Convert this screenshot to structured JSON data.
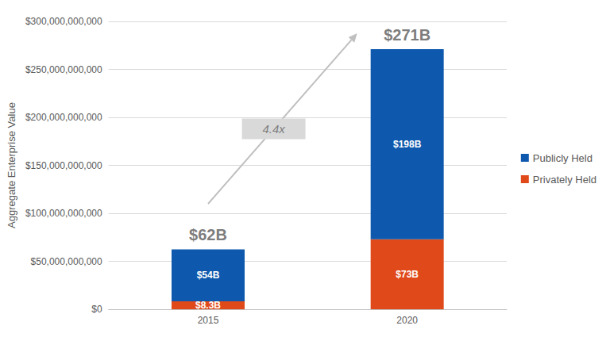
{
  "chart_data": {
    "type": "bar",
    "stacked": true,
    "data_labels": true,
    "legend": "right",
    "grid": true,
    "y_label": "Aggregate Enterprise Value",
    "categories": [
      "2015",
      "2020"
    ],
    "series": [
      {
        "name": "Publicly Held",
        "color": "#0E59AD",
        "values": [
          54000000000,
          198000000000
        ],
        "value_labels": [
          "$54B",
          "$198B"
        ]
      },
      {
        "name": "Privately Held",
        "color": "#E04A1B",
        "values": [
          8300000000,
          73000000000
        ],
        "value_labels": [
          "$8.3B",
          "$73B"
        ]
      }
    ],
    "totals": [
      62000000000,
      271000000000
    ],
    "total_labels": [
      "$62B",
      "$271B"
    ],
    "annotations": [
      "4.4x"
    ],
    "ylim": [
      0,
      300000000000
    ],
    "yticks": [
      {
        "value": 0,
        "label": "$0"
      },
      {
        "value": 50000000000,
        "label": "$50,000,000,000"
      },
      {
        "value": 100000000000,
        "label": "$100,000,000,000"
      },
      {
        "value": 150000000000,
        "label": "$150,000,000,000"
      },
      {
        "value": 200000000000,
        "label": "$200,000,000,000"
      },
      {
        "value": 250000000000,
        "label": "$250,000,000,000"
      },
      {
        "value": 300000000000,
        "label": "$300,000,000,000"
      }
    ]
  }
}
